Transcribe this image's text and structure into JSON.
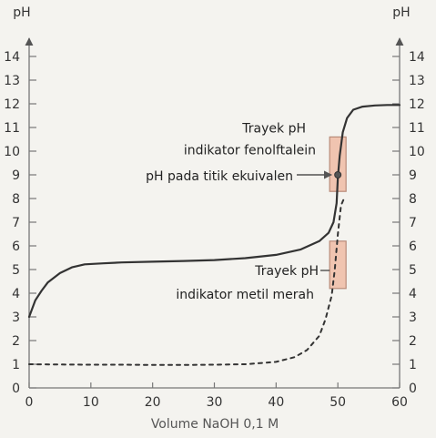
{
  "chart_data": {
    "type": "line",
    "title": "",
    "xlabel": "Volume NaOH 0,1 M",
    "ylabel_left": "pH",
    "ylabel_right": "pH",
    "xlim": [
      0,
      60
    ],
    "ylim": [
      0,
      14
    ],
    "x_ticks": [
      0,
      10,
      20,
      30,
      40,
      50,
      60
    ],
    "y_ticks": [
      0,
      1,
      2,
      3,
      4,
      5,
      6,
      7,
      8,
      9,
      10,
      11,
      12,
      13,
      14
    ],
    "grid": false,
    "series": [
      {
        "style": "solid",
        "color": "#333333",
        "x": [
          0,
          1,
          2,
          3,
          5,
          7,
          9,
          12,
          15,
          20,
          25,
          30,
          35,
          40,
          44,
          47,
          48.5,
          49.3,
          49.8,
          50,
          50.3,
          50.8,
          51.5,
          52.5,
          54,
          56,
          58,
          60
        ],
        "y": [
          3.0,
          3.7,
          4.1,
          4.45,
          4.85,
          5.1,
          5.22,
          5.26,
          5.3,
          5.33,
          5.36,
          5.4,
          5.48,
          5.62,
          5.85,
          6.2,
          6.55,
          7.0,
          7.8,
          8.9,
          9.8,
          10.8,
          11.4,
          11.75,
          11.88,
          11.93,
          11.95,
          11.95
        ]
      },
      {
        "style": "dashed",
        "color": "#333333",
        "x": [
          0,
          5,
          10,
          15,
          20,
          25,
          30,
          35,
          40,
          43,
          45,
          47,
          48,
          49,
          49.5,
          50,
          50.5,
          51
        ],
        "y": [
          1.0,
          0.99,
          0.98,
          0.98,
          0.97,
          0.97,
          0.98,
          1.0,
          1.1,
          1.3,
          1.6,
          2.2,
          2.9,
          3.9,
          5.0,
          6.5,
          7.7,
          8.0
        ]
      }
    ],
    "equivalence_point": {
      "x": 50,
      "y": 9,
      "label": "pH pada titik ekuivalen"
    },
    "indicator_ranges": [
      {
        "name": "phenolphthalein",
        "label_lines": [
          "Trayek pH",
          "indikator fenolftalein"
        ],
        "ph_min": 8.3,
        "ph_max": 10.6,
        "color": "#f0c4b0"
      },
      {
        "name": "methyl-red",
        "label_lines": [
          "Trayek pH",
          "indikator metil merah"
        ],
        "ph_min": 4.2,
        "ph_max": 6.2,
        "color": "#f0c4b0"
      }
    ]
  }
}
